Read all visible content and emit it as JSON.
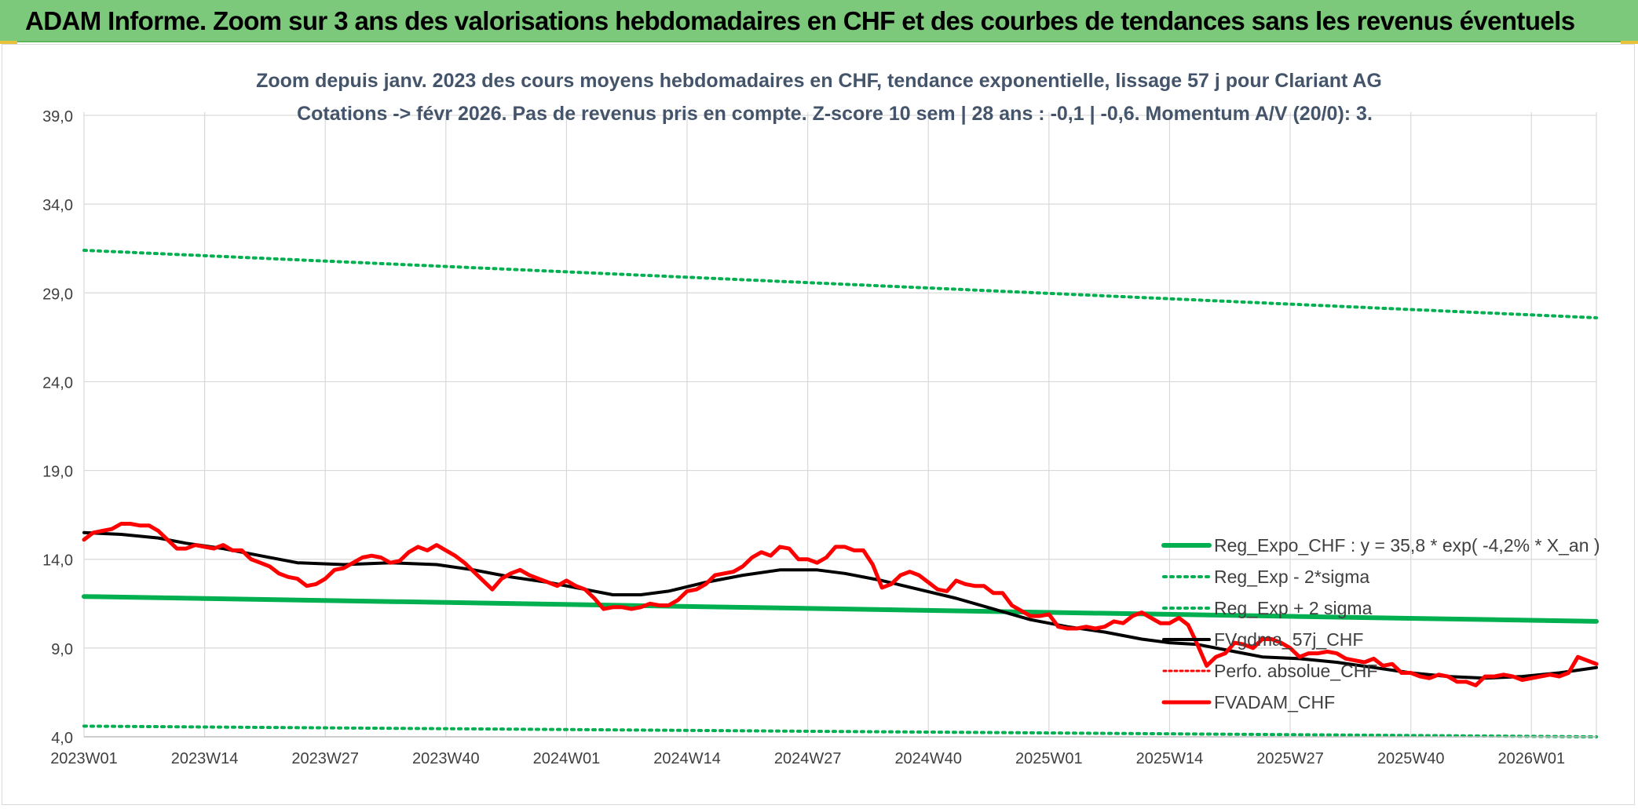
{
  "header": {
    "title": "ADAM Informe. Zoom sur 3 ans des valorisations hebdomadaires en CHF et des courbes de tendances sans les revenus éventuels"
  },
  "chart_data": {
    "type": "line",
    "title": "Zoom depuis janv. 2023 des cours moyens hebdomadaires en CHF, tendance exponentielle, lissage 57 j pour Clariant AG",
    "subtitle": "Cotations -> févr 2026. Pas de revenus pris en compte. Z-score 10 sem | 28 ans : -0,1 | -0,6. Momentum A/V (20/0): 3.",
    "xlabel": "",
    "ylabel": "",
    "ylim": [
      4,
      39
    ],
    "yticks": [
      "4,0",
      "9,0",
      "14,0",
      "19,0",
      "24,0",
      "29,0",
      "34,0",
      "39,0"
    ],
    "ytick_values": [
      4,
      9,
      14,
      19,
      24,
      29,
      34,
      39
    ],
    "xticks": [
      "2023W01",
      "2023W14",
      "2023W27",
      "2023W40",
      "2024W01",
      "2024W14",
      "2024W27",
      "2024W40",
      "2025W01",
      "2025W14",
      "2025W27",
      "2025W40",
      "2026W01"
    ],
    "xtick_weeks": [
      0,
      13,
      26,
      39,
      52,
      65,
      78,
      91,
      104,
      117,
      130,
      143,
      156
    ],
    "xlim_weeks": [
      0,
      163
    ],
    "grid": true,
    "legend_position": "bottom-right",
    "colors": {
      "reg_expo": "#00b050",
      "sigma": "#00b050",
      "smoothed": "#000000",
      "perfo": "#ff0000",
      "fvadam": "#ff0000",
      "grid": "#d9d9d9",
      "axis": "#bfbfbf"
    },
    "series": [
      {
        "name": "Reg_Expo_CHF : y = 35,8 * exp( -4,2% *  X_an )",
        "style": "solid-thick",
        "points": [
          [
            0,
            11.9
          ],
          [
            163,
            10.5
          ]
        ]
      },
      {
        "name": "Reg_Exp - 2*sigma",
        "style": "dotted",
        "points": [
          [
            0,
            4.6
          ],
          [
            163,
            4.0
          ]
        ]
      },
      {
        "name": "Reg_Exp + 2 sigma",
        "style": "dotted",
        "points": [
          [
            0,
            31.4
          ],
          [
            163,
            27.6
          ]
        ]
      },
      {
        "name": "FVgdma_57j_CHF",
        "style": "solid-black",
        "points": [
          [
            0,
            15.5
          ],
          [
            4,
            15.4
          ],
          [
            8,
            15.2
          ],
          [
            11,
            14.9
          ],
          [
            15,
            14.6
          ],
          [
            19,
            14.2
          ],
          [
            23,
            13.8
          ],
          [
            28,
            13.7
          ],
          [
            33,
            13.8
          ],
          [
            38,
            13.7
          ],
          [
            42,
            13.4
          ],
          [
            46,
            13.0
          ],
          [
            50,
            12.7
          ],
          [
            54,
            12.3
          ],
          [
            57,
            12.0
          ],
          [
            60,
            12.0
          ],
          [
            63,
            12.2
          ],
          [
            67,
            12.7
          ],
          [
            71,
            13.1
          ],
          [
            75,
            13.4
          ],
          [
            79,
            13.4
          ],
          [
            82,
            13.2
          ],
          [
            86,
            12.8
          ],
          [
            90,
            12.3
          ],
          [
            94,
            11.8
          ],
          [
            98,
            11.2
          ],
          [
            102,
            10.6
          ],
          [
            106,
            10.2
          ],
          [
            110,
            9.9
          ],
          [
            114,
            9.5
          ],
          [
            117,
            9.3
          ],
          [
            120,
            9.2
          ],
          [
            124,
            8.8
          ],
          [
            127,
            8.5
          ],
          [
            131,
            8.4
          ],
          [
            135,
            8.2
          ],
          [
            139,
            7.9
          ],
          [
            143,
            7.6
          ],
          [
            147,
            7.4
          ],
          [
            151,
            7.3
          ],
          [
            155,
            7.4
          ],
          [
            159,
            7.6
          ],
          [
            163,
            7.9
          ]
        ]
      },
      {
        "name": "Perfo. absolue_CHF",
        "style": "dotted-red",
        "points": []
      },
      {
        "name": "FVADAM_CHF",
        "style": "solid-red",
        "points": [
          [
            0,
            15.1
          ],
          [
            1,
            15.5
          ],
          [
            2,
            15.6
          ],
          [
            3,
            15.7
          ],
          [
            4,
            16.0
          ],
          [
            5,
            16.0
          ],
          [
            6,
            15.9
          ],
          [
            7,
            15.9
          ],
          [
            8,
            15.6
          ],
          [
            9,
            15.1
          ],
          [
            10,
            14.6
          ],
          [
            11,
            14.6
          ],
          [
            12,
            14.8
          ],
          [
            13,
            14.7
          ],
          [
            14,
            14.6
          ],
          [
            15,
            14.8
          ],
          [
            16,
            14.5
          ],
          [
            17,
            14.5
          ],
          [
            18,
            14.0
          ],
          [
            19,
            13.8
          ],
          [
            20,
            13.6
          ],
          [
            21,
            13.2
          ],
          [
            22,
            13.0
          ],
          [
            23,
            12.9
          ],
          [
            24,
            12.5
          ],
          [
            25,
            12.6
          ],
          [
            26,
            12.9
          ],
          [
            27,
            13.4
          ],
          [
            28,
            13.5
          ],
          [
            29,
            13.8
          ],
          [
            30,
            14.1
          ],
          [
            31,
            14.2
          ],
          [
            32,
            14.1
          ],
          [
            33,
            13.8
          ],
          [
            34,
            13.9
          ],
          [
            35,
            14.4
          ],
          [
            36,
            14.7
          ],
          [
            37,
            14.5
          ],
          [
            38,
            14.8
          ],
          [
            39,
            14.5
          ],
          [
            40,
            14.2
          ],
          [
            41,
            13.8
          ],
          [
            42,
            13.3
          ],
          [
            43,
            12.8
          ],
          [
            44,
            12.3
          ],
          [
            45,
            12.9
          ],
          [
            46,
            13.2
          ],
          [
            47,
            13.4
          ],
          [
            48,
            13.1
          ],
          [
            49,
            12.9
          ],
          [
            50,
            12.7
          ],
          [
            51,
            12.5
          ],
          [
            52,
            12.8
          ],
          [
            53,
            12.5
          ],
          [
            54,
            12.3
          ],
          [
            55,
            11.8
          ],
          [
            56,
            11.2
          ],
          [
            57,
            11.3
          ],
          [
            58,
            11.3
          ],
          [
            59,
            11.2
          ],
          [
            60,
            11.3
          ],
          [
            61,
            11.5
          ],
          [
            62,
            11.4
          ],
          [
            63,
            11.4
          ],
          [
            64,
            11.7
          ],
          [
            65,
            12.2
          ],
          [
            66,
            12.3
          ],
          [
            67,
            12.6
          ],
          [
            68,
            13.1
          ],
          [
            69,
            13.2
          ],
          [
            70,
            13.3
          ],
          [
            71,
            13.6
          ],
          [
            72,
            14.1
          ],
          [
            73,
            14.4
          ],
          [
            74,
            14.2
          ],
          [
            75,
            14.7
          ],
          [
            76,
            14.6
          ],
          [
            77,
            14.0
          ],
          [
            78,
            14.0
          ],
          [
            79,
            13.8
          ],
          [
            80,
            14.1
          ],
          [
            81,
            14.7
          ],
          [
            82,
            14.7
          ],
          [
            83,
            14.5
          ],
          [
            84,
            14.5
          ],
          [
            85,
            13.7
          ],
          [
            86,
            12.4
          ],
          [
            87,
            12.6
          ],
          [
            88,
            13.1
          ],
          [
            89,
            13.3
          ],
          [
            90,
            13.1
          ],
          [
            91,
            12.7
          ],
          [
            92,
            12.3
          ],
          [
            93,
            12.2
          ],
          [
            94,
            12.8
          ],
          [
            95,
            12.6
          ],
          [
            96,
            12.5
          ],
          [
            97,
            12.5
          ],
          [
            98,
            12.1
          ],
          [
            99,
            12.1
          ],
          [
            100,
            11.4
          ],
          [
            101,
            11.1
          ],
          [
            102,
            10.8
          ],
          [
            103,
            10.8
          ],
          [
            104,
            10.9
          ],
          [
            105,
            10.2
          ],
          [
            106,
            10.1
          ],
          [
            107,
            10.1
          ],
          [
            108,
            10.2
          ],
          [
            109,
            10.1
          ],
          [
            110,
            10.2
          ],
          [
            111,
            10.5
          ],
          [
            112,
            10.4
          ],
          [
            113,
            10.8
          ],
          [
            114,
            11.0
          ],
          [
            115,
            10.7
          ],
          [
            116,
            10.4
          ],
          [
            117,
            10.4
          ],
          [
            118,
            10.7
          ],
          [
            119,
            10.3
          ],
          [
            120,
            9.2
          ],
          [
            121,
            8.0
          ],
          [
            122,
            8.5
          ],
          [
            123,
            8.7
          ],
          [
            124,
            9.3
          ],
          [
            125,
            9.2
          ],
          [
            126,
            9.0
          ],
          [
            127,
            9.5
          ],
          [
            128,
            9.5
          ],
          [
            129,
            9.3
          ],
          [
            130,
            9.0
          ],
          [
            131,
            8.5
          ],
          [
            132,
            8.7
          ],
          [
            133,
            8.7
          ],
          [
            134,
            8.8
          ],
          [
            135,
            8.7
          ],
          [
            136,
            8.4
          ],
          [
            137,
            8.3
          ],
          [
            138,
            8.2
          ],
          [
            139,
            8.4
          ],
          [
            140,
            8.0
          ],
          [
            141,
            8.1
          ],
          [
            142,
            7.6
          ],
          [
            143,
            7.6
          ],
          [
            144,
            7.4
          ],
          [
            145,
            7.3
          ],
          [
            146,
            7.5
          ],
          [
            147,
            7.4
          ],
          [
            148,
            7.1
          ],
          [
            149,
            7.1
          ],
          [
            150,
            6.9
          ],
          [
            151,
            7.4
          ],
          [
            152,
            7.4
          ],
          [
            153,
            7.5
          ],
          [
            154,
            7.4
          ],
          [
            155,
            7.2
          ],
          [
            156,
            7.3
          ],
          [
            157,
            7.4
          ],
          [
            158,
            7.5
          ],
          [
            159,
            7.4
          ],
          [
            160,
            7.6
          ],
          [
            161,
            8.5
          ],
          [
            162,
            8.3
          ],
          [
            163,
            8.1
          ]
        ]
      }
    ]
  }
}
